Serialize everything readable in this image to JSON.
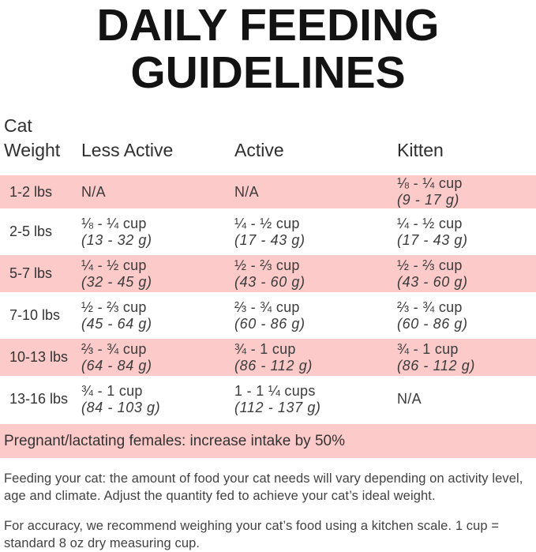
{
  "title": {
    "line1": "DAILY FEEDING",
    "line2": "GUIDELINES"
  },
  "table": {
    "headers": {
      "weight_line1": "Cat",
      "weight_line2": "Weight",
      "less_active": "Less Active",
      "active": "Active",
      "kitten": "Kitten"
    },
    "rows": [
      {
        "weight": "1-2 lbs",
        "cells": [
          {
            "cups": "N/A",
            "grams": ""
          },
          {
            "cups": "N/A",
            "grams": ""
          },
          {
            "cups": "⅛ - ¼ cup",
            "grams": "(9 - 17 g)"
          }
        ]
      },
      {
        "weight": "2-5 lbs",
        "cells": [
          {
            "cups": "⅛ - ¼ cup",
            "grams": "(13 - 32 g)"
          },
          {
            "cups": "¼ - ½ cup",
            "grams": "(17 - 43 g)"
          },
          {
            "cups": "¼ - ½ cup",
            "grams": "(17 - 43 g)"
          }
        ]
      },
      {
        "weight": "5-7 lbs",
        "cells": [
          {
            "cups": "¼ - ½ cup",
            "grams": "(32 - 45 g)"
          },
          {
            "cups": "½ - ⅔ cup",
            "grams": "(43 - 60 g)"
          },
          {
            "cups": "½ - ⅔ cup",
            "grams": "(43 - 60 g)"
          }
        ]
      },
      {
        "weight": "7-10 lbs",
        "cells": [
          {
            "cups": "½ - ⅔ cup",
            "grams": "(45 - 64 g)"
          },
          {
            "cups": "⅔ - ¾ cup",
            "grams": "(60 - 86 g)"
          },
          {
            "cups": "⅔ - ¾ cup",
            "grams": "(60 - 86 g)"
          }
        ]
      },
      {
        "weight": "10-13 lbs",
        "cells": [
          {
            "cups": "⅔ - ¾ cup",
            "grams": "(64 - 84 g)"
          },
          {
            "cups": "¾ - 1 cup",
            "grams": "(86 - 112 g)"
          },
          {
            "cups": "¾ - 1 cup",
            "grams": "(86 - 112 g)"
          }
        ]
      },
      {
        "weight": "13-16 lbs",
        "cells": [
          {
            "cups": "¾ - 1 cup",
            "grams": "(84 - 103 g)"
          },
          {
            "cups": "1 - 1 ¼ cups",
            "grams": "(112 - 137 g)"
          },
          {
            "cups": "N/A",
            "grams": ""
          }
        ]
      }
    ]
  },
  "pregnant_note": "Pregnant/lactating females: increase intake by 50%",
  "footnotes": {
    "feeding": "Feeding your cat: the amount of food your cat needs will vary depending on activity level, age and climate. Adjust the quantity fed to achieve your cat’s ideal weight.",
    "accuracy": "For accuracy, we recommend weighing your cat’s food using a kitchen scale. 1 cup = standard 8 oz dry measuring cup."
  },
  "colors": {
    "row_pink": "#fccac9",
    "title_black": "#131313",
    "text_dark": "#3a3a3a"
  }
}
